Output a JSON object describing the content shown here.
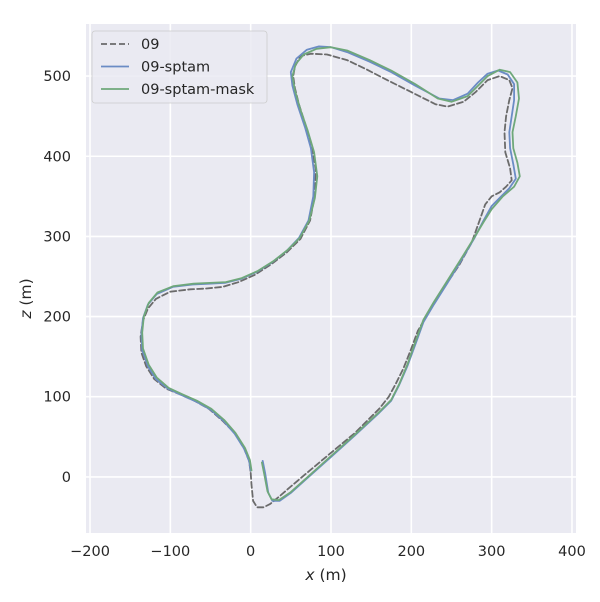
{
  "chart_data": {
    "type": "line",
    "xlabel": {
      "var": "x",
      "unit": " (m)"
    },
    "ylabel": {
      "var": "z",
      "unit": " (m)"
    },
    "xlim": [
      -205,
      405
    ],
    "ylim": [
      -70,
      565
    ],
    "xticks": [
      -200,
      -100,
      0,
      100,
      200,
      300,
      400
    ],
    "yticks": [
      0,
      100,
      200,
      300,
      400,
      500
    ],
    "grid": true,
    "legend_position": "top-left",
    "series": [
      {
        "name": "09",
        "color": "#6b6b6b",
        "dash": true,
        "points": [
          [
            0,
            5
          ],
          [
            1,
            -10
          ],
          [
            3,
            -30
          ],
          [
            8,
            -38
          ],
          [
            16,
            -38
          ],
          [
            24,
            -34
          ],
          [
            35,
            -25
          ],
          [
            50,
            -12
          ],
          [
            70,
            5
          ],
          [
            100,
            30
          ],
          [
            130,
            55
          ],
          [
            160,
            85
          ],
          [
            172,
            100
          ],
          [
            180,
            115
          ],
          [
            190,
            135
          ],
          [
            200,
            160
          ],
          [
            208,
            182
          ],
          [
            220,
            203
          ],
          [
            240,
            235
          ],
          [
            260,
            265
          ],
          [
            275,
            292
          ],
          [
            285,
            320
          ],
          [
            292,
            340
          ],
          [
            300,
            350
          ],
          [
            310,
            355
          ],
          [
            318,
            362
          ],
          [
            325,
            370
          ],
          [
            323,
            385
          ],
          [
            317,
            405
          ],
          [
            316,
            430
          ],
          [
            318,
            450
          ],
          [
            322,
            470
          ],
          [
            326,
            485
          ],
          [
            322,
            495
          ],
          [
            310,
            500
          ],
          [
            295,
            495
          ],
          [
            280,
            480
          ],
          [
            265,
            468
          ],
          [
            245,
            462
          ],
          [
            230,
            465
          ],
          [
            200,
            480
          ],
          [
            170,
            495
          ],
          [
            145,
            508
          ],
          [
            120,
            520
          ],
          [
            95,
            527
          ],
          [
            75,
            528
          ],
          [
            62,
            525
          ],
          [
            55,
            512
          ],
          [
            53,
            500
          ],
          [
            55,
            485
          ],
          [
            60,
            465
          ],
          [
            68,
            440
          ],
          [
            76,
            410
          ],
          [
            81,
            385
          ],
          [
            80,
            352
          ],
          [
            74,
            320
          ],
          [
            62,
            297
          ],
          [
            45,
            280
          ],
          [
            25,
            265
          ],
          [
            5,
            252
          ],
          [
            -15,
            243
          ],
          [
            -35,
            237
          ],
          [
            -55,
            235
          ],
          [
            -75,
            234
          ],
          [
            -100,
            231
          ],
          [
            -118,
            222
          ],
          [
            -128,
            210
          ],
          [
            -134,
            195
          ],
          [
            -137,
            175
          ],
          [
            -136,
            155
          ],
          [
            -130,
            138
          ],
          [
            -120,
            122
          ],
          [
            -105,
            110
          ],
          [
            -88,
            103
          ],
          [
            -70,
            95
          ],
          [
            -52,
            85
          ],
          [
            -35,
            70
          ],
          [
            -20,
            55
          ],
          [
            -8,
            35
          ],
          [
            -2,
            20
          ],
          [
            0,
            5
          ]
        ]
      },
      {
        "name": "09-sptam",
        "color": "#6b8cc5",
        "dash": false,
        "points": [
          [
            15,
            20
          ],
          [
            18,
            5
          ],
          [
            22,
            -20
          ],
          [
            27,
            -30
          ],
          [
            36,
            -30
          ],
          [
            50,
            -20
          ],
          [
            70,
            -2
          ],
          [
            100,
            25
          ],
          [
            130,
            52
          ],
          [
            160,
            80
          ],
          [
            175,
            95
          ],
          [
            185,
            115
          ],
          [
            195,
            138
          ],
          [
            205,
            165
          ],
          [
            215,
            193
          ],
          [
            228,
            215
          ],
          [
            245,
            242
          ],
          [
            262,
            270
          ],
          [
            278,
            297
          ],
          [
            290,
            320
          ],
          [
            300,
            338
          ],
          [
            312,
            350
          ],
          [
            322,
            360
          ],
          [
            330,
            372
          ],
          [
            327,
            390
          ],
          [
            323,
            410
          ],
          [
            322,
            430
          ],
          [
            325,
            450
          ],
          [
            328,
            470
          ],
          [
            328,
            490
          ],
          [
            320,
            502
          ],
          [
            308,
            507
          ],
          [
            295,
            503
          ],
          [
            283,
            492
          ],
          [
            270,
            478
          ],
          [
            252,
            470
          ],
          [
            235,
            472
          ],
          [
            205,
            488
          ],
          [
            175,
            505
          ],
          [
            148,
            518
          ],
          [
            120,
            530
          ],
          [
            100,
            536
          ],
          [
            85,
            537
          ],
          [
            70,
            533
          ],
          [
            57,
            522
          ],
          [
            50,
            505
          ],
          [
            52,
            488
          ],
          [
            58,
            465
          ],
          [
            68,
            435
          ],
          [
            75,
            410
          ],
          [
            79,
            380
          ],
          [
            78,
            350
          ],
          [
            72,
            320
          ],
          [
            60,
            298
          ],
          [
            45,
            282
          ],
          [
            27,
            268
          ],
          [
            8,
            256
          ],
          [
            -12,
            247
          ],
          [
            -32,
            242
          ],
          [
            -52,
            241
          ],
          [
            -72,
            240
          ],
          [
            -97,
            237
          ],
          [
            -117,
            228
          ],
          [
            -128,
            215
          ],
          [
            -134,
            198
          ],
          [
            -136,
            178
          ],
          [
            -135,
            158
          ],
          [
            -128,
            138
          ],
          [
            -118,
            122
          ],
          [
            -103,
            110
          ],
          [
            -86,
            102
          ],
          [
            -68,
            94
          ],
          [
            -50,
            84
          ],
          [
            -34,
            70
          ],
          [
            -20,
            54
          ],
          [
            -8,
            35
          ],
          [
            -2,
            20
          ],
          [
            0,
            8
          ]
        ]
      },
      {
        "name": "09-sptam-mask",
        "color": "#6fa87a",
        "dash": false,
        "points": [
          [
            14,
            18
          ],
          [
            17,
            3
          ],
          [
            21,
            -18
          ],
          [
            26,
            -28
          ],
          [
            35,
            -29
          ],
          [
            50,
            -19
          ],
          [
            70,
            -1
          ],
          [
            100,
            26
          ],
          [
            130,
            53
          ],
          [
            160,
            81
          ],
          [
            175,
            96
          ],
          [
            185,
            116
          ],
          [
            195,
            140
          ],
          [
            205,
            168
          ],
          [
            215,
            196
          ],
          [
            228,
            218
          ],
          [
            245,
            245
          ],
          [
            262,
            272
          ],
          [
            278,
            298
          ],
          [
            290,
            318
          ],
          [
            300,
            334
          ],
          [
            314,
            350
          ],
          [
            328,
            362
          ],
          [
            335,
            375
          ],
          [
            332,
            392
          ],
          [
            327,
            410
          ],
          [
            326,
            430
          ],
          [
            330,
            450
          ],
          [
            334,
            472
          ],
          [
            332,
            492
          ],
          [
            323,
            505
          ],
          [
            310,
            508
          ],
          [
            295,
            500
          ],
          [
            283,
            488
          ],
          [
            270,
            475
          ],
          [
            250,
            468
          ],
          [
            233,
            472
          ],
          [
            205,
            490
          ],
          [
            175,
            507
          ],
          [
            148,
            520
          ],
          [
            120,
            532
          ],
          [
            100,
            536
          ],
          [
            82,
            534
          ],
          [
            66,
            527
          ],
          [
            56,
            515
          ],
          [
            52,
            500
          ],
          [
            55,
            482
          ],
          [
            62,
            458
          ],
          [
            71,
            432
          ],
          [
            79,
            405
          ],
          [
            83,
            375
          ],
          [
            80,
            348
          ],
          [
            73,
            320
          ],
          [
            61,
            298
          ],
          [
            46,
            283
          ],
          [
            28,
            269
          ],
          [
            9,
            257
          ],
          [
            -11,
            248
          ],
          [
            -31,
            243
          ],
          [
            -51,
            242
          ],
          [
            -71,
            241
          ],
          [
            -96,
            238
          ],
          [
            -116,
            230
          ],
          [
            -127,
            217
          ],
          [
            -133,
            200
          ],
          [
            -135,
            180
          ],
          [
            -134,
            160
          ],
          [
            -127,
            140
          ],
          [
            -117,
            124
          ],
          [
            -102,
            111
          ],
          [
            -85,
            103
          ],
          [
            -67,
            95
          ],
          [
            -49,
            85
          ],
          [
            -33,
            71
          ],
          [
            -19,
            55
          ],
          [
            -7,
            36
          ],
          [
            -1,
            21
          ],
          [
            1,
            8
          ]
        ]
      }
    ]
  }
}
